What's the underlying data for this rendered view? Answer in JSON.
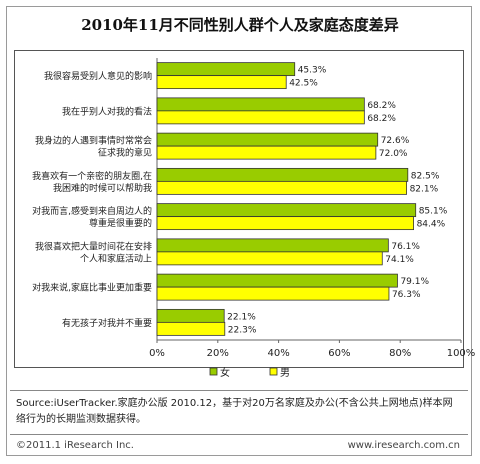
{
  "title": "2010年11月不同性别人群个人及家庭态度差异",
  "chart_data": {
    "type": "bar",
    "orientation": "horizontal",
    "categories": [
      [
        "我很容易受别人意见的影响"
      ],
      [
        "我在乎别人对我的看法"
      ],
      [
        "我身边的人遇到事情时常常会",
        "征求我的意见"
      ],
      [
        "我喜欢有一个亲密的朋友圈,在",
        "我困难的时候可以帮助我"
      ],
      [
        "对我而言,感受到来自周边人的",
        "尊重是很重要的"
      ],
      [
        "我很喜欢把大量时间花在安排",
        "个人和家庭活动上"
      ],
      [
        "对我来说,家庭比事业更加重要"
      ],
      [
        "有无孩子对我并不重要"
      ]
    ],
    "series": [
      {
        "name": "女",
        "color": "#99cc00",
        "values": [
          45.3,
          68.2,
          72.6,
          82.5,
          85.1,
          76.1,
          79.1,
          22.1
        ],
        "labels": [
          "45.3%",
          "68.2%",
          "72.6%",
          "82.5%",
          "85.1%",
          "76.1%",
          "79.1%",
          "22.1%"
        ]
      },
      {
        "name": "男",
        "color": "#ffff00",
        "values": [
          42.5,
          68.2,
          72.0,
          82.1,
          84.4,
          74.1,
          76.3,
          22.3
        ],
        "labels": [
          "42.5%",
          "68.2%",
          "72.0%",
          "82.1%",
          "84.4%",
          "74.1%",
          "76.3%",
          "22.3%"
        ]
      }
    ],
    "xlim": [
      0,
      100
    ],
    "xticks": [
      "0%",
      "20%",
      "40%",
      "60%",
      "80%",
      "100%"
    ],
    "legend_position": "bottom-left"
  },
  "footer": {
    "source": "Source:iUserTracker.家庭办公版 2010.12，基于对20万名家庭及办公(不含公共上网地点)样本网络行为的长期监测数据获得。",
    "copyright": "©2011.1 iResearch Inc.",
    "site": "www.iresearch.com.cn"
  }
}
